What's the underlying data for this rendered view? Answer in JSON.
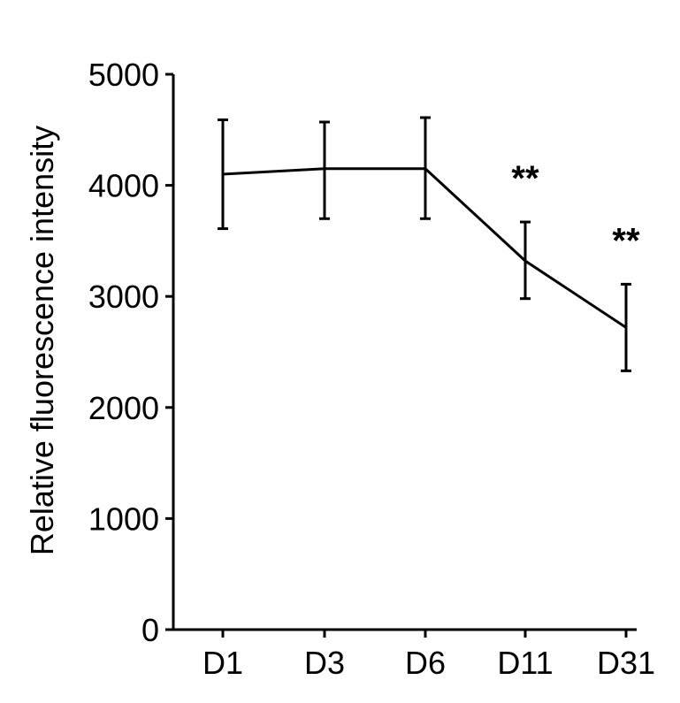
{
  "chart_data": {
    "type": "line",
    "title": "",
    "xlabel": "",
    "ylabel": "Relative fluorescence intensity",
    "categories": [
      "D1",
      "D3",
      "D6",
      "D11",
      "D31"
    ],
    "series": [
      {
        "values": [
          4100,
          4150,
          4150,
          3320,
          2720
        ],
        "error_low": [
          3610,
          3700,
          3700,
          2980,
          2330
        ],
        "error_high": [
          4590,
          4570,
          4610,
          3670,
          3110
        ],
        "color": "#000000"
      }
    ],
    "annotations": [
      {
        "category": "D11",
        "text": "**"
      },
      {
        "category": "D31",
        "text": "**"
      }
    ],
    "yticks": [
      0,
      1000,
      2000,
      3000,
      4000,
      5000
    ],
    "ylim": [
      0,
      5000
    ],
    "grid": false,
    "legend": "none"
  }
}
